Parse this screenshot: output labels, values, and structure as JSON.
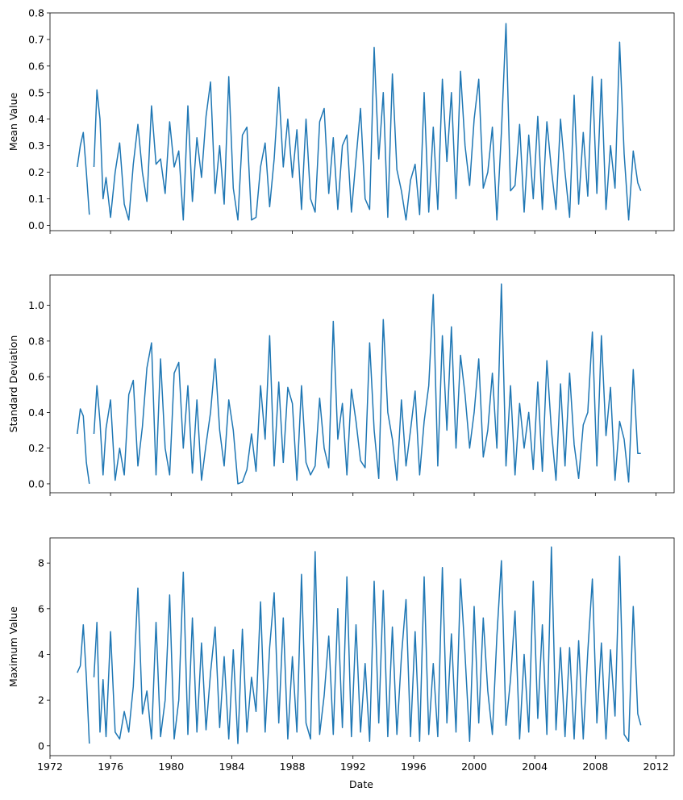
{
  "figure": {
    "xlabel": "Date"
  },
  "colors": {
    "line": "#1f77b4",
    "axes": "#000000",
    "background": "#ffffff"
  },
  "chart_data": [
    {
      "type": "line",
      "ylabel": "Mean Value",
      "ylim": [
        -0.02,
        0.8
      ],
      "yticks": [
        0.0,
        0.1,
        0.2,
        0.3,
        0.4,
        0.5,
        0.6,
        0.7,
        0.8
      ],
      "ytick_labels": [
        "0.0",
        "0.1",
        "0.2",
        "0.3",
        "0.4",
        "0.5",
        "0.6",
        "0.7",
        "0.8"
      ],
      "xlim": [
        1972.0,
        2013.2
      ],
      "xticks": [
        1972,
        1976,
        1980,
        1984,
        1988,
        1992,
        1996,
        2000,
        2004,
        2008,
        2012
      ],
      "xtick_labels": [
        "",
        "",
        "",
        "",
        "",
        "",
        "",
        "",
        "",
        "",
        ""
      ],
      "grid": false,
      "series": [
        {
          "x": [
            1973.8,
            1974.0,
            1974.2,
            1974.4,
            1974.6,
            null,
            1974.9,
            1975.1,
            1975.3,
            1975.5,
            1975.7,
            1976.0,
            1976.3,
            1976.6,
            1976.9,
            1977.2,
            1977.5,
            1977.8,
            1978.1,
            1978.4,
            1978.7,
            1979.0,
            1979.3,
            1979.6,
            1979.9,
            1980.2,
            1980.5,
            1980.8,
            1981.1,
            1981.4,
            1981.7,
            1982.0,
            1982.3,
            1982.6,
            1982.9,
            1983.2,
            1983.5,
            1983.8,
            1984.1,
            1984.4,
            1984.7,
            1985.0,
            1985.3,
            1985.6,
            1985.9,
            1986.2,
            1986.5,
            1986.8,
            1987.1,
            1987.4,
            1987.7,
            1988.0,
            1988.3,
            1988.6,
            1988.9,
            1989.2,
            1989.5,
            1989.8,
            1990.1,
            1990.4,
            1990.7,
            1991.0,
            1991.3,
            1991.6,
            1991.9,
            1992.2,
            1992.5,
            1992.8,
            1993.1,
            1993.4,
            1993.7,
            1994.0,
            1994.3,
            1994.6,
            1994.9,
            1995.2,
            1995.5,
            1995.8,
            1996.1,
            1996.4,
            1996.7,
            1997.0,
            1997.3,
            1997.6,
            1997.9,
            1998.2,
            1998.5,
            1998.8,
            1999.1,
            1999.4,
            1999.7,
            2000.0,
            2000.3,
            2000.6,
            2000.9,
            2001.2,
            2001.5,
            2001.8,
            2002.1,
            2002.4,
            2002.7,
            2003.0,
            2003.3,
            2003.6,
            2003.9,
            2004.2,
            2004.5,
            2004.8,
            2005.1,
            2005.4,
            2005.7,
            2006.0,
            2006.3,
            2006.6,
            2006.9,
            2007.2,
            2007.5,
            2007.8,
            2008.1,
            2008.4,
            2008.7,
            2009.0,
            2009.3,
            2009.6,
            2009.9,
            2010.2,
            2010.5,
            2010.8,
            2011.0
          ],
          "y": [
            0.22,
            0.3,
            0.35,
            0.2,
            0.04,
            null,
            0.22,
            0.51,
            0.4,
            0.1,
            0.18,
            0.03,
            0.2,
            0.31,
            0.08,
            0.02,
            0.23,
            0.38,
            0.2,
            0.09,
            0.45,
            0.23,
            0.25,
            0.12,
            0.39,
            0.22,
            0.28,
            0.02,
            0.45,
            0.09,
            0.33,
            0.18,
            0.41,
            0.54,
            0.12,
            0.3,
            0.08,
            0.56,
            0.14,
            0.02,
            0.34,
            0.37,
            0.02,
            0.03,
            0.22,
            0.31,
            0.07,
            0.25,
            0.52,
            0.22,
            0.4,
            0.18,
            0.36,
            0.06,
            0.4,
            0.1,
            0.05,
            0.39,
            0.44,
            0.12,
            0.33,
            0.06,
            0.3,
            0.34,
            0.05,
            0.25,
            0.44,
            0.1,
            0.06,
            0.67,
            0.25,
            0.5,
            0.03,
            0.57,
            0.21,
            0.13,
            0.02,
            0.17,
            0.23,
            0.04,
            0.5,
            0.05,
            0.37,
            0.06,
            0.55,
            0.24,
            0.5,
            0.1,
            0.58,
            0.3,
            0.15,
            0.4,
            0.55,
            0.14,
            0.2,
            0.37,
            0.02,
            0.35,
            0.76,
            0.13,
            0.15,
            0.38,
            0.05,
            0.34,
            0.1,
            0.41,
            0.06,
            0.39,
            0.21,
            0.06,
            0.4,
            0.2,
            0.03,
            0.49,
            0.08,
            0.35,
            0.11,
            0.56,
            0.12,
            0.55,
            0.06,
            0.3,
            0.14,
            0.69,
            0.27,
            0.02,
            0.28,
            0.16,
            0.13
          ]
        }
      ]
    },
    {
      "type": "line",
      "ylabel": "Standard Deviation",
      "ylim": [
        -0.05,
        1.17
      ],
      "yticks": [
        0.0,
        0.2,
        0.4,
        0.6,
        0.8,
        1.0
      ],
      "ytick_labels": [
        "0.0",
        "0.2",
        "0.4",
        "0.6",
        "0.8",
        "1.0"
      ],
      "xlim": [
        1972.0,
        2013.2
      ],
      "xticks": [
        1972,
        1976,
        1980,
        1984,
        1988,
        1992,
        1996,
        2000,
        2004,
        2008,
        2012
      ],
      "xtick_labels": [
        "",
        "",
        "",
        "",
        "",
        "",
        "",
        "",
        "",
        "",
        ""
      ],
      "grid": false,
      "series": [
        {
          "x": [
            1973.8,
            1974.0,
            1974.2,
            1974.4,
            1974.6,
            null,
            1974.9,
            1975.1,
            1975.3,
            1975.5,
            1975.7,
            1976.0,
            1976.3,
            1976.6,
            1976.9,
            1977.2,
            1977.5,
            1977.8,
            1978.1,
            1978.4,
            1978.7,
            1979.0,
            1979.3,
            1979.6,
            1979.9,
            1980.2,
            1980.5,
            1980.8,
            1981.1,
            1981.4,
            1981.7,
            1982.0,
            1982.3,
            1982.6,
            1982.9,
            1983.2,
            1983.5,
            1983.8,
            1984.1,
            1984.4,
            1984.7,
            1985.0,
            1985.3,
            1985.6,
            1985.9,
            1986.2,
            1986.5,
            1986.8,
            1987.1,
            1987.4,
            1987.7,
            1988.0,
            1988.3,
            1988.6,
            1988.9,
            1989.2,
            1989.5,
            1989.8,
            1990.1,
            1990.4,
            1990.7,
            1991.0,
            1991.3,
            1991.6,
            1991.9,
            1992.2,
            1992.5,
            1992.8,
            1993.1,
            1993.4,
            1993.7,
            1994.0,
            1994.3,
            1994.6,
            1994.9,
            1995.2,
            1995.5,
            1995.8,
            1996.1,
            1996.4,
            1996.7,
            1997.0,
            1997.3,
            1997.6,
            1997.9,
            1998.2,
            1998.5,
            1998.8,
            1999.1,
            1999.4,
            1999.7,
            2000.0,
            2000.3,
            2000.6,
            2000.9,
            2001.2,
            2001.5,
            2001.8,
            2002.1,
            2002.4,
            2002.7,
            2003.0,
            2003.3,
            2003.6,
            2003.9,
            2004.2,
            2004.5,
            2004.8,
            2005.1,
            2005.4,
            2005.7,
            2006.0,
            2006.3,
            2006.6,
            2006.9,
            2007.2,
            2007.5,
            2007.8,
            2008.1,
            2008.4,
            2008.7,
            2009.0,
            2009.3,
            2009.6,
            2009.9,
            2010.2,
            2010.5,
            2010.8,
            2011.0
          ],
          "y": [
            0.28,
            0.42,
            0.38,
            0.12,
            0.0,
            null,
            0.28,
            0.55,
            0.35,
            0.05,
            0.31,
            0.47,
            0.02,
            0.2,
            0.05,
            0.5,
            0.58,
            0.1,
            0.32,
            0.65,
            0.79,
            0.05,
            0.7,
            0.2,
            0.05,
            0.62,
            0.68,
            0.2,
            0.55,
            0.06,
            0.47,
            0.02,
            0.22,
            0.4,
            0.7,
            0.3,
            0.1,
            0.47,
            0.3,
            0.0,
            0.01,
            0.08,
            0.28,
            0.07,
            0.55,
            0.25,
            0.83,
            0.1,
            0.57,
            0.12,
            0.54,
            0.45,
            0.02,
            0.55,
            0.12,
            0.05,
            0.1,
            0.48,
            0.2,
            0.09,
            0.91,
            0.25,
            0.45,
            0.05,
            0.53,
            0.35,
            0.13,
            0.09,
            0.79,
            0.3,
            0.03,
            0.92,
            0.4,
            0.25,
            0.02,
            0.47,
            0.1,
            0.3,
            0.52,
            0.05,
            0.35,
            0.55,
            1.06,
            0.1,
            0.83,
            0.3,
            0.88,
            0.2,
            0.72,
            0.5,
            0.2,
            0.4,
            0.7,
            0.15,
            0.3,
            0.62,
            0.2,
            1.12,
            0.1,
            0.55,
            0.05,
            0.45,
            0.2,
            0.4,
            0.08,
            0.57,
            0.07,
            0.69,
            0.3,
            0.02,
            0.56,
            0.1,
            0.62,
            0.22,
            0.03,
            0.33,
            0.4,
            0.85,
            0.1,
            0.83,
            0.27,
            0.54,
            0.02,
            0.35,
            0.25,
            0.01,
            0.64,
            0.17,
            0.17
          ]
        }
      ]
    },
    {
      "type": "line",
      "ylabel": "Maximum Value",
      "ylim": [
        -0.43,
        9.1
      ],
      "yticks": [
        0,
        2,
        4,
        6,
        8
      ],
      "ytick_labels": [
        "0",
        "2",
        "4",
        "6",
        "8"
      ],
      "xlim": [
        1972.0,
        2013.2
      ],
      "xticks": [
        1972,
        1976,
        1980,
        1984,
        1988,
        1992,
        1996,
        2000,
        2004,
        2008,
        2012
      ],
      "xtick_labels": [
        "1972",
        "1976",
        "1980",
        "1984",
        "1988",
        "1992",
        "1996",
        "2000",
        "2004",
        "2008",
        "2012"
      ],
      "xlabel": "Date",
      "grid": false,
      "series": [
        {
          "x": [
            1973.8,
            1974.0,
            1974.2,
            1974.4,
            1974.6,
            null,
            1974.9,
            1975.1,
            1975.3,
            1975.5,
            1975.7,
            1976.0,
            1976.3,
            1976.6,
            1976.9,
            1977.2,
            1977.5,
            1977.8,
            1978.1,
            1978.4,
            1978.7,
            1979.0,
            1979.3,
            1979.6,
            1979.9,
            1980.2,
            1980.5,
            1980.8,
            1981.1,
            1981.4,
            1981.7,
            1982.0,
            1982.3,
            1982.6,
            1982.9,
            1983.2,
            1983.5,
            1983.8,
            1984.1,
            1984.4,
            1984.7,
            1985.0,
            1985.3,
            1985.6,
            1985.9,
            1986.2,
            1986.5,
            1986.8,
            1987.1,
            1987.4,
            1987.7,
            1988.0,
            1988.3,
            1988.6,
            1988.9,
            1989.2,
            1989.5,
            1989.8,
            1990.1,
            1990.4,
            1990.7,
            1991.0,
            1991.3,
            1991.6,
            1991.9,
            1992.2,
            1992.5,
            1992.8,
            1993.1,
            1993.4,
            1993.7,
            1994.0,
            1994.3,
            1994.6,
            1994.9,
            1995.2,
            1995.5,
            1995.8,
            1996.1,
            1996.4,
            1996.7,
            1997.0,
            1997.3,
            1997.6,
            1997.9,
            1998.2,
            1998.5,
            1998.8,
            1999.1,
            1999.4,
            1999.7,
            2000.0,
            2000.3,
            2000.6,
            2000.9,
            2001.2,
            2001.5,
            2001.8,
            2002.1,
            2002.4,
            2002.7,
            2003.0,
            2003.3,
            2003.6,
            2003.9,
            2004.2,
            2004.5,
            2004.8,
            2005.1,
            2005.4,
            2005.7,
            2006.0,
            2006.3,
            2006.6,
            2006.9,
            2007.2,
            2007.5,
            2007.8,
            2008.1,
            2008.4,
            2008.7,
            2009.0,
            2009.3,
            2009.6,
            2009.9,
            2010.2,
            2010.5,
            2010.8,
            2011.0
          ],
          "y": [
            3.2,
            3.5,
            5.3,
            3.0,
            0.1,
            null,
            3.0,
            5.4,
            0.6,
            2.9,
            0.4,
            5.0,
            0.6,
            0.3,
            1.5,
            0.6,
            2.6,
            6.9,
            1.4,
            2.4,
            0.3,
            5.4,
            0.4,
            2.0,
            6.6,
            0.3,
            2.0,
            7.6,
            0.5,
            5.6,
            0.6,
            4.5,
            0.7,
            3.2,
            5.2,
            0.8,
            3.9,
            0.3,
            4.2,
            0.1,
            5.1,
            0.6,
            3.0,
            1.5,
            6.3,
            0.6,
            4.3,
            6.7,
            1.0,
            5.6,
            0.3,
            3.9,
            0.6,
            7.5,
            1.0,
            0.3,
            8.5,
            0.5,
            2.2,
            4.8,
            0.5,
            6.0,
            0.8,
            7.4,
            0.4,
            5.3,
            0.6,
            3.6,
            0.2,
            7.2,
            1.0,
            6.8,
            0.4,
            5.2,
            0.5,
            3.9,
            6.4,
            0.4,
            5.0,
            0.2,
            7.4,
            0.5,
            3.6,
            0.4,
            7.8,
            1.0,
            4.9,
            0.6,
            7.3,
            4.0,
            0.2,
            6.1,
            1.0,
            5.6,
            2.4,
            0.5,
            4.8,
            8.1,
            0.9,
            2.9,
            5.9,
            0.3,
            4.0,
            0.6,
            7.2,
            1.2,
            5.3,
            0.5,
            8.7,
            0.7,
            4.3,
            0.4,
            4.3,
            0.3,
            4.6,
            0.3,
            4.1,
            7.3,
            1.0,
            4.5,
            0.3,
            4.2,
            1.3,
            8.3,
            0.5,
            0.2,
            6.1,
            1.4,
            0.9
          ]
        }
      ]
    }
  ]
}
